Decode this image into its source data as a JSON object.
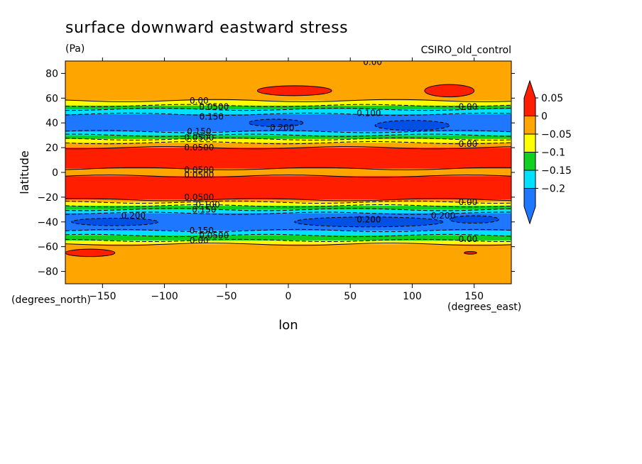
{
  "chart_data": {
    "type": "heatmap",
    "title": "surface downward eastward stress",
    "units": "(Pa)",
    "source_label": "CSIRO_old_control",
    "xlabel": "lon",
    "ylabel": "latitude",
    "x_units": "(degrees_east)",
    "y_units": "(degrees_north)",
    "xlim": [
      -180,
      180
    ],
    "ylim": [
      -90,
      90
    ],
    "x_ticks": [
      -150,
      -100,
      -50,
      0,
      50,
      100,
      150
    ],
    "y_ticks": [
      -80,
      -60,
      -40,
      -20,
      0,
      20,
      40,
      60,
      80
    ],
    "x_tick_labels": [
      "−150",
      "−100",
      "−50",
      "0",
      "50",
      "100",
      "150"
    ],
    "y_tick_labels": [
      "−80",
      "−60",
      "−40",
      "−20",
      "0",
      "20",
      "40",
      "60",
      "80"
    ],
    "colorbar": {
      "colors": [
        "#1e78ff",
        "#00e0ff",
        "#10d020",
        "#ffff00",
        "#ffa500",
        "#ff1e00"
      ],
      "ticks": [
        "0.05",
        "0",
        "−0.05",
        "−0.1",
        "−0.15",
        "−0.2"
      ],
      "tick_values": [
        0.05,
        0,
        -0.05,
        -0.1,
        -0.15,
        -0.2
      ]
    },
    "zonal_bands": [
      {
        "lat_from": 90,
        "lat_to": 58,
        "class": "0 to 0.05"
      },
      {
        "lat_from": 58,
        "lat_to": 54,
        "class": "-0.05 to 0"
      },
      {
        "lat_from": 54,
        "lat_to": 51,
        "class": "-0.1 to -0.05"
      },
      {
        "lat_from": 51,
        "lat_to": 47,
        "class": "-0.15 to -0.1"
      },
      {
        "lat_from": 47,
        "lat_to": 33,
        "class": "-0.2 to -0.15"
      },
      {
        "lat_from": 33,
        "lat_to": 30,
        "class": "-0.15 to -0.1"
      },
      {
        "lat_from": 30,
        "lat_to": 27,
        "class": "-0.1 to -0.05"
      },
      {
        "lat_from": 27,
        "lat_to": 24,
        "class": "-0.05 to 0"
      },
      {
        "lat_from": 24,
        "lat_to": 20,
        "class": "0 to 0.05"
      },
      {
        "lat_from": 20,
        "lat_to": 3,
        "class": "> 0.05"
      },
      {
        "lat_from": 3,
        "lat_to": -3,
        "class": "0 to 0.05"
      },
      {
        "lat_from": -3,
        "lat_to": -22,
        "class": "> 0.05"
      },
      {
        "lat_from": -22,
        "lat_to": -24,
        "class": "0 to 0.05"
      },
      {
        "lat_from": -24,
        "lat_to": -27,
        "class": "-0.05 to 0"
      },
      {
        "lat_from": -27,
        "lat_to": -30,
        "class": "-0.1 to -0.05"
      },
      {
        "lat_from": -30,
        "lat_to": -33,
        "class": "-0.15 to -0.1"
      },
      {
        "lat_from": -33,
        "lat_to": -47,
        "class": "-0.2 to -0.15"
      },
      {
        "lat_from": -47,
        "lat_to": -51,
        "class": "-0.15 to -0.1"
      },
      {
        "lat_from": -51,
        "lat_to": -55,
        "class": "-0.1 to -0.05"
      },
      {
        "lat_from": -55,
        "lat_to": -58,
        "class": "-0.05 to 0"
      },
      {
        "lat_from": -58,
        "lat_to": -90,
        "class": "0 to 0.05"
      }
    ],
    "regions": [
      {
        "class": "> 0.05",
        "lon": 5,
        "lat": 66,
        "lon_radius": 30,
        "lat_radius": 4
      },
      {
        "class": "> 0.05",
        "lon": 130,
        "lat": 66,
        "lon_radius": 20,
        "lat_radius": 5
      },
      {
        "class": "> 0.05",
        "lon": -160,
        "lat": -65,
        "lon_radius": 20,
        "lat_radius": 3
      },
      {
        "class": "> 0.05",
        "lon": 147,
        "lat": -65,
        "lon_radius": 5,
        "lat_radius": 1
      },
      {
        "class": "< -0.2",
        "lon": -10,
        "lat": 40,
        "lon_radius": 22,
        "lat_radius": 3
      },
      {
        "class": "< -0.2",
        "lon": 100,
        "lat": 38,
        "lon_radius": 30,
        "lat_radius": 4
      },
      {
        "class": "< -0.2",
        "lon": -140,
        "lat": -40,
        "lon_radius": 35,
        "lat_radius": 3
      },
      {
        "class": "< -0.2",
        "lon": 65,
        "lat": -40,
        "lon_radius": 60,
        "lat_radius": 4
      },
      {
        "class": "< -0.2",
        "lon": 150,
        "lat": -38,
        "lon_radius": 20,
        "lat_radius": 3
      }
    ],
    "contour_labels": [
      {
        "text": "0.00",
        "lon": 68,
        "lat": 89
      },
      {
        "text": "0.00",
        "lon": -72,
        "lat": 58
      },
      {
        "text": "0.00",
        "lon": 145,
        "lat": 53
      },
      {
        "text": "0.0500",
        "lon": -60,
        "lat": 53
      },
      {
        "text": "0.150",
        "lon": -62,
        "lat": 45
      },
      {
        "text": "0.100",
        "lon": 65,
        "lat": 48
      },
      {
        "text": "0.200",
        "lon": -5,
        "lat": 36
      },
      {
        "text": "0.150",
        "lon": -72,
        "lat": 33
      },
      {
        "text": "0.0500",
        "lon": -72,
        "lat": 28
      },
      {
        "text": "0.0500",
        "lon": -72,
        "lat": 20
      },
      {
        "text": "0.00",
        "lon": 145,
        "lat": 23
      },
      {
        "text": "0.0500",
        "lon": -72,
        "lat": 2
      },
      {
        "text": "0.0500",
        "lon": -72,
        "lat": -2
      },
      {
        "text": "0.0500",
        "lon": -72,
        "lat": -20
      },
      {
        "text": "0.00",
        "lon": 145,
        "lat": -24
      },
      {
        "text": "0.100",
        "lon": -65,
        "lat": -26
      },
      {
        "text": "0.150",
        "lon": -68,
        "lat": -30
      },
      {
        "text": "0.200",
        "lon": -125,
        "lat": -35
      },
      {
        "text": "0.200",
        "lon": 65,
        "lat": -38
      },
      {
        "text": "0.200",
        "lon": 125,
        "lat": -35
      },
      {
        "text": "0.150",
        "lon": -70,
        "lat": -47
      },
      {
        "text": "0.0500",
        "lon": -60,
        "lat": -51
      },
      {
        "text": "0.00",
        "lon": -72,
        "lat": -55
      },
      {
        "text": "0.00",
        "lon": 145,
        "lat": -54
      }
    ]
  }
}
